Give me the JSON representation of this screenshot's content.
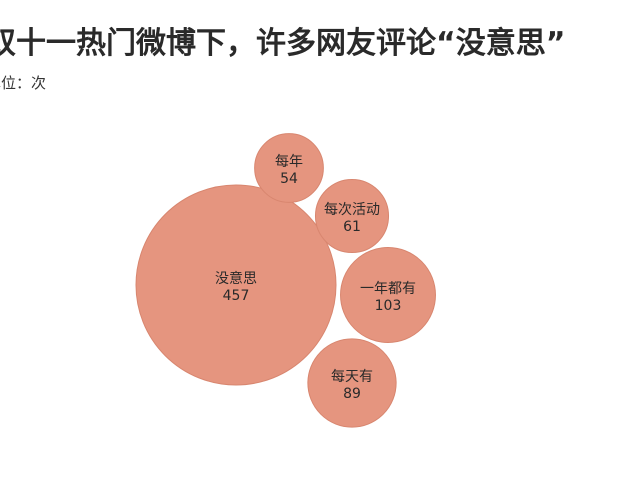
{
  "chart_data": {
    "type": "bubble",
    "title": "双十一热门微博下，许多网友评论“没意思”",
    "subtitle": "单位：次",
    "color": "#e5957f",
    "categories": [
      "没意思",
      "每年",
      "每次活动",
      "一年都有",
      "每天有"
    ],
    "values": [
      457,
      54,
      61,
      103,
      89
    ],
    "legend": "none",
    "grid": false
  }
}
